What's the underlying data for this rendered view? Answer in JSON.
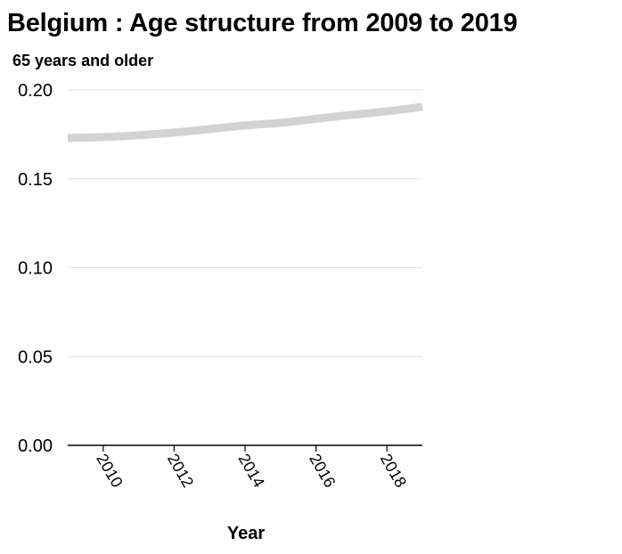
{
  "chart_data": {
    "type": "line",
    "title": "Belgium : Age structure from 2009 to 2019",
    "ylabel": "65 years and older",
    "xlabel": "Year",
    "x": [
      2009,
      2010,
      2011,
      2012,
      2013,
      2014,
      2015,
      2016,
      2017,
      2018,
      2019
    ],
    "series": [
      {
        "values": [
          0.173,
          0.1735,
          0.1745,
          0.176,
          0.178,
          0.18,
          0.1815,
          0.1838,
          0.186,
          0.188,
          0.1905
        ]
      }
    ],
    "xlim": [
      2009,
      2019
    ],
    "ylim": [
      0.0,
      0.2
    ],
    "xticks": [
      2010,
      2012,
      2014,
      2016,
      2018
    ],
    "yticks": [
      "0.00",
      "0.05",
      "0.10",
      "0.15",
      "0.20"
    ],
    "grid": "horizontal",
    "line_color": "#d3d3d3"
  }
}
